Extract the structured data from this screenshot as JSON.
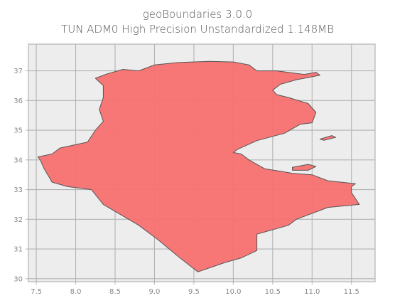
{
  "title": {
    "line1": "geoBoundaries 3.0.0",
    "line2": "TUN ADM0 High Precision Unstandardized 1.148MB"
  },
  "chart_data": {
    "type": "map",
    "x_ticks": [
      "7.5",
      "8.0",
      "8.5",
      "9.0",
      "9.5",
      "10.0",
      "10.5",
      "11.0",
      "11.5"
    ],
    "y_ticks": [
      "30",
      "31",
      "32",
      "33",
      "34",
      "35",
      "36",
      "37"
    ],
    "xlim": [
      7.4,
      11.8
    ],
    "ylim": [
      29.9,
      37.9
    ],
    "grid": true,
    "region": {
      "name": "TUN ADM0",
      "fill": "#f87171",
      "stroke": "#555555",
      "boundary_lonlat": [
        [
          8.4,
          36.9
        ],
        [
          8.6,
          37.05
        ],
        [
          8.8,
          37.0
        ],
        [
          9.0,
          37.2
        ],
        [
          9.3,
          37.28
        ],
        [
          9.7,
          37.32
        ],
        [
          10.0,
          37.3
        ],
        [
          10.2,
          37.2
        ],
        [
          10.3,
          37.0
        ],
        [
          10.55,
          37.0
        ],
        [
          10.9,
          36.88
        ],
        [
          11.05,
          36.95
        ],
        [
          11.1,
          36.85
        ],
        [
          10.8,
          36.7
        ],
        [
          10.6,
          36.55
        ],
        [
          10.5,
          36.35
        ],
        [
          10.55,
          36.2
        ],
        [
          10.7,
          36.1
        ],
        [
          10.95,
          35.9
        ],
        [
          11.05,
          35.6
        ],
        [
          11.0,
          35.25
        ],
        [
          10.85,
          35.2
        ],
        [
          10.65,
          34.9
        ],
        [
          10.3,
          34.65
        ],
        [
          10.05,
          34.35
        ],
        [
          10.0,
          34.25
        ],
        [
          10.1,
          34.2
        ],
        [
          10.2,
          34.0
        ],
        [
          10.4,
          33.7
        ],
        [
          10.6,
          33.62
        ],
        [
          10.75,
          33.55
        ],
        [
          11.0,
          33.5
        ],
        [
          11.2,
          33.3
        ],
        [
          11.55,
          33.2
        ],
        [
          11.5,
          33.1
        ],
        [
          11.5,
          32.9
        ],
        [
          11.6,
          32.5
        ],
        [
          11.2,
          32.4
        ],
        [
          10.8,
          32.0
        ],
        [
          10.7,
          31.8
        ],
        [
          10.3,
          31.5
        ],
        [
          10.3,
          30.95
        ],
        [
          10.1,
          30.7
        ],
        [
          9.9,
          30.55
        ],
        [
          9.55,
          30.23
        ],
        [
          9.3,
          30.75
        ],
        [
          9.05,
          31.3
        ],
        [
          8.8,
          31.8
        ],
        [
          8.35,
          32.5
        ],
        [
          8.2,
          33.0
        ],
        [
          7.9,
          33.1
        ],
        [
          7.7,
          33.25
        ],
        [
          7.6,
          33.7
        ],
        [
          7.55,
          34.0
        ],
        [
          7.52,
          34.1
        ],
        [
          7.7,
          34.2
        ],
        [
          7.8,
          34.4
        ],
        [
          8.15,
          34.6
        ],
        [
          8.25,
          35.0
        ],
        [
          8.35,
          35.3
        ],
        [
          8.3,
          35.7
        ],
        [
          8.35,
          36.1
        ],
        [
          8.35,
          36.5
        ],
        [
          8.25,
          36.75
        ],
        [
          8.4,
          36.9
        ]
      ],
      "islands_lonlat": [
        [
          [
            10.75,
            33.75
          ],
          [
            10.95,
            33.85
          ],
          [
            11.05,
            33.78
          ],
          [
            10.95,
            33.65
          ],
          [
            10.75,
            33.65
          ]
        ],
        [
          [
            11.1,
            34.7
          ],
          [
            11.25,
            34.82
          ],
          [
            11.3,
            34.76
          ],
          [
            11.15,
            34.66
          ]
        ]
      ]
    }
  }
}
